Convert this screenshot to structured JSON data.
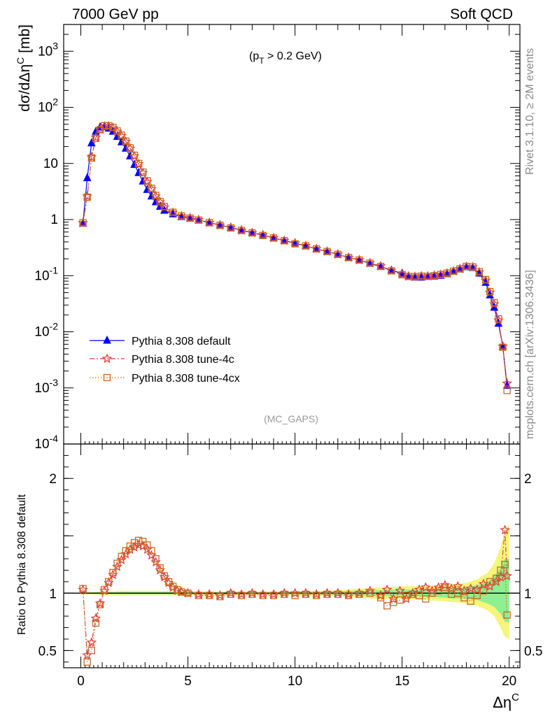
{
  "header": {
    "energy": "7000 GeV pp",
    "process": "Soft QCD"
  },
  "annotation": {
    "cut_main": "(p",
    "cut_sub": "T",
    "cut_rest": " > 0.2 GeV)"
  },
  "side_text": {
    "rivet": "Rivet 3.1.10, ≥ 2M events",
    "mcplots": "mcplots.cern.ch [arXiv:1306.3436]"
  },
  "watermark": "(MC_GAPS)",
  "chart_data": [
    {
      "type": "line",
      "title": "",
      "ylabel": "dσ/dΔη^C [mb]",
      "yscale": "log",
      "ylim": [
        0.0001,
        3000
      ],
      "xlim": [
        -0.8,
        20.5
      ],
      "y_tick_labels": [
        "10^-4",
        "10^-3",
        "10^-2",
        "10^-1",
        "1",
        "10",
        "10^2",
        "10^3"
      ],
      "legend_position": "bottom-left",
      "series": [
        {
          "name": "Pythia 8.308 default",
          "color": "#0000ff",
          "marker": "triangle",
          "x": [
            0.1,
            0.3,
            0.5,
            0.7,
            0.9,
            1.1,
            1.3,
            1.5,
            1.7,
            1.9,
            2.1,
            2.3,
            2.5,
            2.7,
            2.9,
            3.1,
            3.3,
            3.5,
            3.7,
            3.9,
            4.3,
            4.7,
            5.1,
            5.5,
            6,
            6.5,
            7,
            7.5,
            8,
            8.5,
            9,
            9.5,
            10,
            10.5,
            11,
            11.5,
            12,
            12.5,
            13,
            13.5,
            14,
            14.5,
            15,
            15.3,
            15.6,
            15.9,
            16.2,
            16.5,
            16.8,
            17.1,
            17.4,
            17.7,
            18,
            18.3,
            18.6,
            18.9,
            19.1,
            19.3,
            19.5,
            19.7,
            19.9
          ],
          "y": [
            0.85,
            5.5,
            23,
            37,
            44,
            45,
            42,
            37,
            30,
            24,
            18.5,
            13.5,
            9.5,
            6.8,
            4.8,
            3.4,
            2.6,
            2.05,
            1.7,
            1.45,
            1.25,
            1.12,
            1.05,
            0.98,
            0.88,
            0.8,
            0.72,
            0.65,
            0.58,
            0.53,
            0.47,
            0.42,
            0.38,
            0.34,
            0.3,
            0.27,
            0.24,
            0.21,
            0.19,
            0.165,
            0.145,
            0.125,
            0.11,
            0.098,
            0.093,
            0.093,
            0.095,
            0.097,
            0.1,
            0.107,
            0.118,
            0.13,
            0.142,
            0.138,
            0.11,
            0.075,
            0.045,
            0.027,
            0.014,
            0.0055,
            0.0011
          ]
        },
        {
          "name": "Pythia 8.308 tune-4c",
          "color": "#e03c3c",
          "marker": "star",
          "x": [
            0.1,
            0.3,
            0.5,
            0.7,
            0.9,
            1.1,
            1.3,
            1.5,
            1.7,
            1.9,
            2.1,
            2.3,
            2.5,
            2.7,
            2.9,
            3.1,
            3.3,
            3.5,
            3.7,
            3.9,
            4.3,
            4.7,
            5.1,
            5.5,
            6,
            6.5,
            7,
            7.5,
            8,
            8.5,
            9,
            9.5,
            10,
            10.5,
            11,
            11.5,
            12,
            12.5,
            13,
            13.5,
            14,
            14.5,
            15,
            15.3,
            15.6,
            15.9,
            16.2,
            16.5,
            16.8,
            17.1,
            17.4,
            17.7,
            18,
            18.3,
            18.6,
            18.9,
            19.1,
            19.3,
            19.5,
            19.7,
            19.9
          ],
          "y": [
            0.87,
            2.6,
            13,
            29,
            40,
            46,
            46,
            43,
            37,
            31,
            24.5,
            18.5,
            13.5,
            9.8,
            6.8,
            4.7,
            3.5,
            2.6,
            2.05,
            1.65,
            1.33,
            1.15,
            1.07,
            0.99,
            0.88,
            0.79,
            0.72,
            0.64,
            0.58,
            0.53,
            0.47,
            0.42,
            0.38,
            0.34,
            0.3,
            0.27,
            0.24,
            0.21,
            0.19,
            0.168,
            0.148,
            0.123,
            0.105,
            0.097,
            0.096,
            0.098,
            0.098,
            0.101,
            0.104,
            0.11,
            0.12,
            0.132,
            0.145,
            0.142,
            0.115,
            0.082,
            0.05,
            0.031,
            0.016,
            0.0055,
            0.0012
          ]
        },
        {
          "name": "Pythia 8.308 tune-4cx",
          "color": "#c76a1e",
          "marker": "open-square",
          "x": [
            0.1,
            0.3,
            0.5,
            0.7,
            0.9,
            1.1,
            1.3,
            1.5,
            1.7,
            1.9,
            2.1,
            2.3,
            2.5,
            2.7,
            2.9,
            3.1,
            3.3,
            3.5,
            3.7,
            3.9,
            4.3,
            4.7,
            5.1,
            5.5,
            6,
            6.5,
            7,
            7.5,
            8,
            8.5,
            9,
            9.5,
            10,
            10.5,
            11,
            11.5,
            12,
            12.5,
            13,
            13.5,
            14,
            14.5,
            15,
            15.3,
            15.6,
            15.9,
            16.2,
            16.5,
            16.8,
            17.1,
            17.4,
            17.7,
            18,
            18.3,
            18.6,
            18.9,
            19.1,
            19.3,
            19.5,
            19.7,
            19.9
          ],
          "y": [
            0.88,
            2.5,
            12.5,
            28,
            40,
            47,
            47,
            44,
            38,
            32,
            25,
            19,
            14,
            10,
            7,
            4.9,
            3.6,
            2.7,
            2.1,
            1.7,
            1.35,
            1.16,
            1.06,
            0.98,
            0.88,
            0.79,
            0.71,
            0.64,
            0.58,
            0.52,
            0.47,
            0.42,
            0.37,
            0.34,
            0.3,
            0.27,
            0.24,
            0.21,
            0.19,
            0.167,
            0.146,
            0.122,
            0.104,
            0.097,
            0.096,
            0.098,
            0.097,
            0.1,
            0.105,
            0.111,
            0.12,
            0.132,
            0.146,
            0.143,
            0.118,
            0.085,
            0.052,
            0.033,
            0.017,
            0.0053,
            0.0009
          ]
        }
      ]
    },
    {
      "type": "line",
      "title": "",
      "xlabel": "Δη^C",
      "ylabel": "Ratio to Pythia 8.308 default",
      "ylim": [
        0.35,
        2.3
      ],
      "xlim": [
        -0.8,
        20.5
      ],
      "x_ticks": [
        0,
        5,
        10,
        15,
        20
      ],
      "y_ticks": [
        0.5,
        1,
        2
      ],
      "band": {
        "x": [
          0,
          2,
          4,
          6,
          8,
          10,
          12,
          13,
          14,
          15,
          16,
          17,
          18,
          18.5,
          19,
          19.3,
          19.6,
          19.8,
          20
        ],
        "yellow_lo": [
          0.99,
          0.98,
          0.98,
          0.985,
          0.985,
          0.985,
          0.975,
          0.96,
          0.95,
          0.95,
          0.94,
          0.93,
          0.91,
          0.89,
          0.85,
          0.8,
          0.7,
          0.62,
          0.6
        ],
        "yellow_hi": [
          1.01,
          1.02,
          1.02,
          1.015,
          1.015,
          1.015,
          1.025,
          1.04,
          1.05,
          1.06,
          1.06,
          1.07,
          1.09,
          1.12,
          1.18,
          1.26,
          1.4,
          1.55,
          1.6
        ],
        "green_lo": [
          0.995,
          0.99,
          0.99,
          0.99,
          0.99,
          0.99,
          0.985,
          0.98,
          0.975,
          0.975,
          0.97,
          0.96,
          0.95,
          0.94,
          0.91,
          0.88,
          0.82,
          0.75,
          0.75
        ],
        "green_hi": [
          1.005,
          1.01,
          1.01,
          1.01,
          1.01,
          1.01,
          1.015,
          1.02,
          1.025,
          1.03,
          1.03,
          1.04,
          1.05,
          1.07,
          1.1,
          1.15,
          1.22,
          1.3,
          1.3
        ]
      },
      "series": [
        {
          "name": "Pythia 8.308 tune-4c",
          "color": "#e03c3c",
          "marker": "star",
          "x": [
            0.1,
            0.3,
            0.5,
            0.7,
            0.9,
            1.1,
            1.3,
            1.5,
            1.7,
            1.9,
            2.1,
            2.3,
            2.5,
            2.7,
            2.9,
            3.1,
            3.3,
            3.5,
            3.7,
            3.9,
            4.1,
            4.3,
            4.5,
            4.7,
            5,
            5.5,
            6,
            6.5,
            7,
            7.5,
            8,
            8.5,
            9,
            9.5,
            10,
            10.5,
            11,
            11.5,
            12,
            12.5,
            13,
            13.5,
            14,
            14.3,
            14.6,
            14.9,
            15.2,
            15.5,
            15.8,
            16.1,
            16.4,
            16.7,
            17,
            17.3,
            17.6,
            17.9,
            18.2,
            18.5,
            18.8,
            19.1,
            19.4,
            19.6,
            19.8,
            19.9
          ],
          "y": [
            1.03,
            0.46,
            0.57,
            0.78,
            0.91,
            1.02,
            1.09,
            1.16,
            1.23,
            1.29,
            1.34,
            1.38,
            1.4,
            1.42,
            1.41,
            1.38,
            1.33,
            1.27,
            1.2,
            1.14,
            1.09,
            1.05,
            1.02,
            1.01,
            1.0,
            0.99,
            0.99,
            0.98,
            1.0,
            0.99,
            1.0,
            0.99,
            0.99,
            1.0,
            1.0,
            1.0,
            0.99,
            1.0,
            1.0,
            0.99,
            1.0,
            1.02,
            0.98,
            1.03,
            0.95,
            1.02,
            0.95,
            1.0,
            1.03,
            1.05,
            1.02,
            1.05,
            1.07,
            1.04,
            1.06,
            1.02,
            1.04,
            1.03,
            1.08,
            1.06,
            1.1,
            1.14,
            1.55,
            1.15
          ]
        },
        {
          "name": "Pythia 8.308 tune-4cx",
          "color": "#c76a1e",
          "marker": "open-square",
          "x": [
            0.1,
            0.3,
            0.5,
            0.7,
            0.9,
            1.1,
            1.3,
            1.5,
            1.7,
            1.9,
            2.1,
            2.3,
            2.5,
            2.7,
            2.9,
            3.1,
            3.3,
            3.5,
            3.7,
            3.9,
            4.1,
            4.3,
            4.5,
            4.7,
            5,
            5.5,
            6,
            6.5,
            7,
            7.5,
            8,
            8.5,
            9,
            9.5,
            10,
            10.5,
            11,
            11.5,
            12,
            12.5,
            13,
            13.5,
            14,
            14.3,
            14.6,
            14.9,
            15.2,
            15.5,
            15.8,
            16.1,
            16.4,
            16.7,
            17,
            17.3,
            17.6,
            17.9,
            18.2,
            18.5,
            18.8,
            19.1,
            19.4,
            19.6,
            19.8,
            19.9
          ],
          "y": [
            1.04,
            0.4,
            0.5,
            0.74,
            0.9,
            1.03,
            1.1,
            1.18,
            1.26,
            1.32,
            1.37,
            1.41,
            1.44,
            1.46,
            1.45,
            1.42,
            1.37,
            1.3,
            1.22,
            1.15,
            1.1,
            1.06,
            1.03,
            1.01,
            1.0,
            0.98,
            0.98,
            0.97,
            0.99,
            0.98,
            0.99,
            0.98,
            0.98,
            0.99,
            0.98,
            0.99,
            0.98,
            0.99,
            0.99,
            0.98,
            0.99,
            1.0,
            0.96,
            0.89,
            0.92,
            0.94,
            0.98,
            0.99,
            0.98,
            0.95,
            1.0,
            1.02,
            1.05,
            0.99,
            1.0,
            0.96,
            0.93,
            0.98,
            1.02,
            1.1,
            1.13,
            1.2,
            1.25,
            0.81
          ]
        }
      ]
    }
  ]
}
